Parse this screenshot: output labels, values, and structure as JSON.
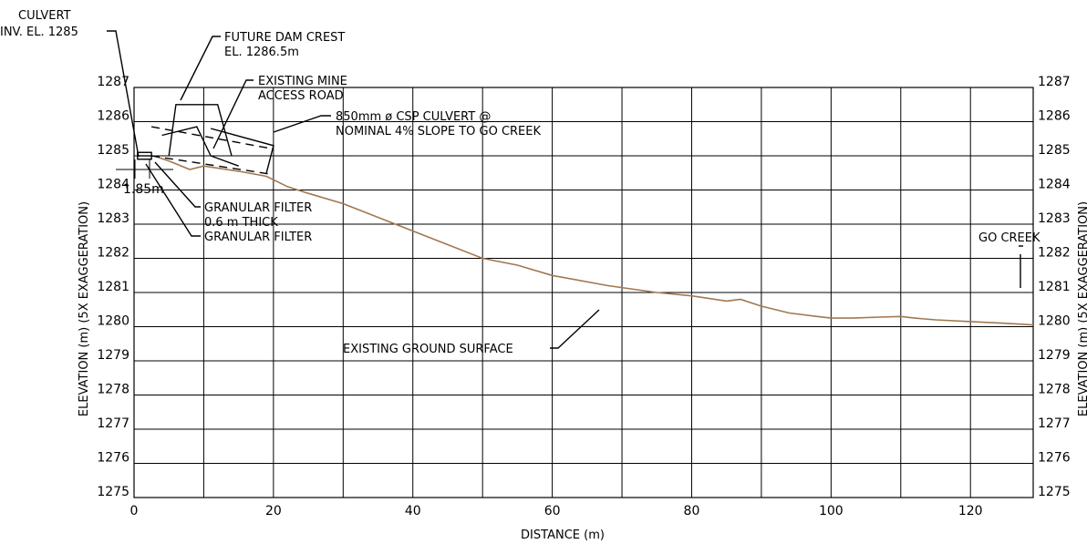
{
  "axes": {
    "x_label": "DISTANCE (m)",
    "y_label_left": "ELEVATION (m) (5X EXAGGERATION)",
    "y_label_right": "ELEVATION (m) (5X EXAGGERATION)",
    "x_ticks": [
      0,
      20,
      40,
      60,
      80,
      100,
      120
    ],
    "y_ticks": [
      1275,
      1276,
      1277,
      1278,
      1279,
      1280,
      1281,
      1282,
      1283,
      1284,
      1285,
      1286,
      1287
    ],
    "x_range": [
      0,
      129
    ],
    "y_range": [
      1275,
      1287
    ]
  },
  "annotations": {
    "culvert_inv": [
      "CULVERT",
      "INV. EL. 1285"
    ],
    "dam_crest": [
      "FUTURE DAM CREST",
      "EL. 1286.5m"
    ],
    "mine_road": [
      "EXISTING MINE",
      "ACCESS ROAD"
    ],
    "csp_culvert": [
      "850mm ø CSP CULVERT @",
      "NOMINAL 4% SLOPE TO GO CREEK"
    ],
    "filter_thick": [
      "GRANULAR FILTER",
      "0.6 m THICK"
    ],
    "filter": "GRANULAR FILTER",
    "dimension": "1.85m",
    "ground_surface": "EXISTING GROUND SURFACE",
    "go_creek": "GO CREEK"
  },
  "colors": {
    "ground": "#a07850",
    "ink": "#000000"
  },
  "ground_profile": [
    [
      2.8,
      1285.0
    ],
    [
      5,
      1284.85
    ],
    [
      8,
      1284.6
    ],
    [
      10,
      1284.7
    ],
    [
      15,
      1284.55
    ],
    [
      19,
      1284.4
    ],
    [
      22,
      1284.1
    ],
    [
      25,
      1283.9
    ],
    [
      30,
      1283.6
    ],
    [
      35,
      1283.2
    ],
    [
      40,
      1282.8
    ],
    [
      45,
      1282.4
    ],
    [
      50,
      1282.0
    ],
    [
      55,
      1281.8
    ],
    [
      60,
      1281.5
    ],
    [
      68,
      1281.2
    ],
    [
      75,
      1281.0
    ],
    [
      80,
      1280.9
    ],
    [
      85,
      1280.75
    ],
    [
      87,
      1280.8
    ],
    [
      90,
      1280.6
    ],
    [
      94,
      1280.4
    ],
    [
      98,
      1280.3
    ],
    [
      100,
      1280.25
    ],
    [
      103,
      1280.25
    ],
    [
      107,
      1280.28
    ],
    [
      110,
      1280.3
    ],
    [
      112,
      1280.25
    ],
    [
      115,
      1280.2
    ],
    [
      120,
      1280.15
    ],
    [
      125,
      1280.1
    ],
    [
      129,
      1280.05
    ]
  ],
  "dam_crest_shape": [
    [
      5,
      1285
    ],
    [
      6,
      1286.5
    ],
    [
      12,
      1286.5
    ],
    [
      14,
      1285
    ]
  ],
  "access_road_shape": [
    [
      4,
      1285.6
    ],
    [
      9,
      1285.85
    ],
    [
      11,
      1285.0
    ],
    [
      15,
      1284.7
    ]
  ],
  "road_bank_shape": [
    [
      11,
      1285.8
    ],
    [
      20,
      1285.3
    ],
    [
      19,
      1284.5
    ]
  ],
  "culvert_pipe": [
    [
      0.5,
      1285.0
    ],
    [
      2.5,
      1285.0
    ]
  ],
  "culvert_crown_dash": [
    [
      2.5,
      1285.85
    ],
    [
      20,
      1285.2
    ]
  ],
  "culvert_invert_dash": [
    [
      2.5,
      1285.0
    ],
    [
      20,
      1284.45
    ]
  ]
}
